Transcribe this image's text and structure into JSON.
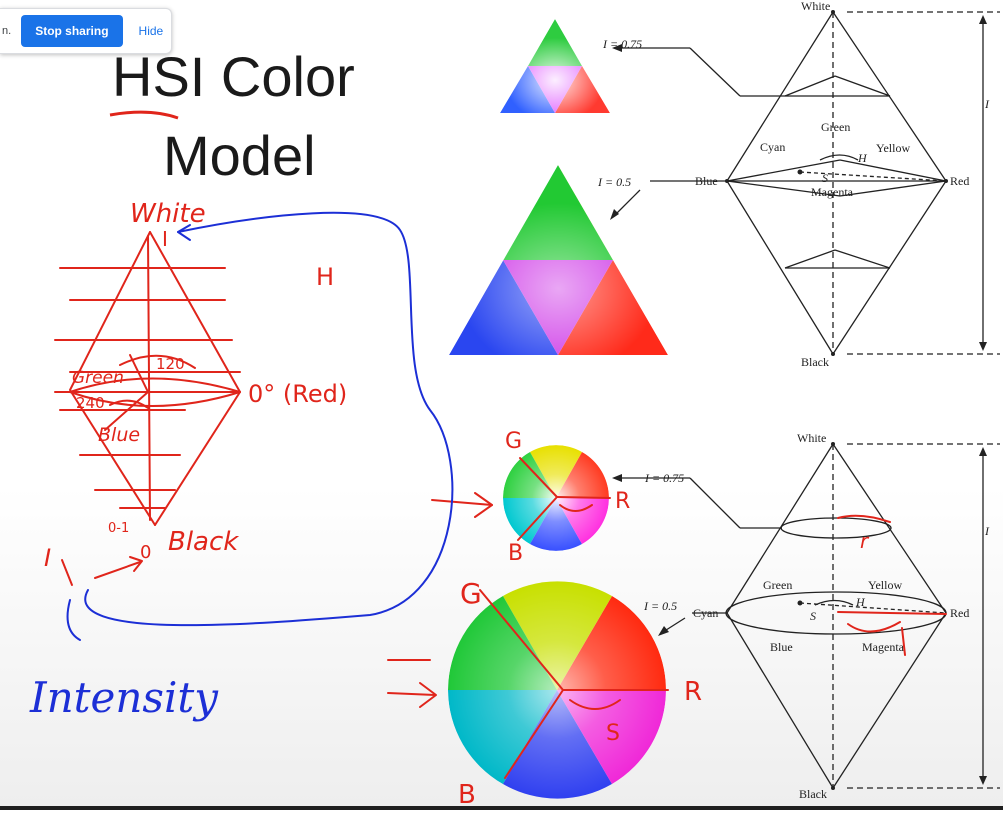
{
  "share_bar": {
    "cut_text": "n.",
    "stop_label": "Stop sharing",
    "hide_label": "Hide"
  },
  "slide": {
    "title_line1": "HSI Color",
    "title_line2": "Model",
    "colors": {
      "annotation_red": "#e0251b",
      "annotation_blue": "#1c2fd6",
      "diagram_ink": "#222222"
    },
    "annotations": {
      "white": "White",
      "i_top": "I",
      "h": "H",
      "green": "Green",
      "deg120": "120",
      "deg240": "240",
      "blue": "Blue",
      "red": "0° (Red)",
      "zero_one": "0-1",
      "zero": "0",
      "black": "Black",
      "i_bottom": "I",
      "intensity": "Intensity",
      "g_small": "G",
      "r_small": "R",
      "b_small": "B",
      "g_big": "G",
      "r_big": "R",
      "b_big": "B",
      "s_label": "S",
      "r_label": "r"
    },
    "diagram_top": {
      "white": "White",
      "black": "Black",
      "green": "Green",
      "cyan": "Cyan",
      "yellow": "Yellow",
      "blue": "Blue",
      "red": "Red",
      "magenta": "Magenta",
      "h": "H",
      "s": "S",
      "i_axis": "I",
      "i075": "I = 0.75",
      "i05": "I = 0.5"
    },
    "diagram_bottom": {
      "white": "White",
      "black": "Black",
      "green": "Green",
      "yellow": "Yellow",
      "cyan": "Cyan",
      "red": "Red",
      "blue": "Blue",
      "magenta": "Magenta",
      "h": "H",
      "s": "S",
      "i_axis": "I",
      "i075": "I = 0.75",
      "i05": "I = 0.5"
    }
  }
}
